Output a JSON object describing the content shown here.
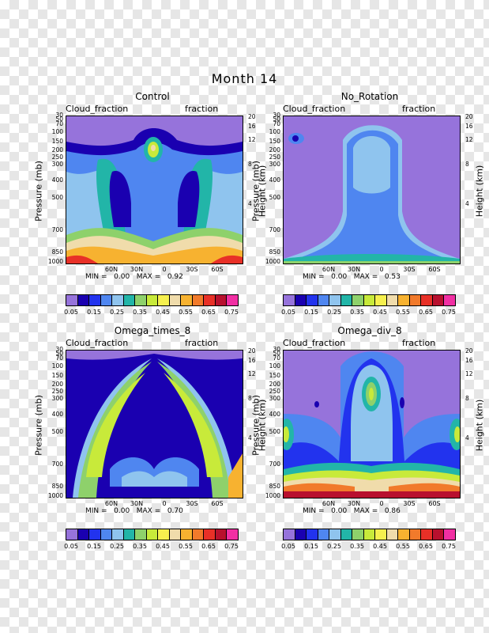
{
  "page_title": "Month 14",
  "colors": [
    "#9673db",
    "#1a00b0",
    "#2233ee",
    "#4f86f0",
    "#8fc4ee",
    "#22b5a8",
    "#8ed16b",
    "#c8ea3a",
    "#f6f04e",
    "#f0dcab",
    "#f7b230",
    "#f17a2b",
    "#e83027",
    "#b8102e",
    "#f12fa3"
  ],
  "colorbar_labels": [
    "0.05",
    "0.15",
    "0.25",
    "0.35",
    "0.45",
    "0.55",
    "0.65",
    "0.75"
  ],
  "left_axis_ticks": [
    "30",
    "50",
    "70",
    "100",
    "150",
    "200",
    "250",
    "300",
    "400",
    "500",
    "700",
    "850",
    "1000"
  ],
  "right_axis_ticks": [
    "20",
    "16",
    "12",
    "8",
    "4"
  ],
  "x_ticks": [
    "60N",
    "30N",
    "0",
    "30S",
    "60S"
  ],
  "left_axis_title": "Pressure (mb)",
  "right_axis_title": "Height (km)",
  "panels": [
    {
      "title": "Control",
      "left_caption": "Cloud_fraction",
      "right_caption": "fraction",
      "min_label": "MIN =",
      "min": "0.00",
      "max_label": "MAX =",
      "max": "0.92"
    },
    {
      "title": "No_Rotation",
      "left_caption": "Cloud_fraction",
      "right_caption": "fraction",
      "min_label": "MIN =",
      "min": "0.00",
      "max_label": "MAX =",
      "max": "0.53"
    },
    {
      "title": "Omega_times_8",
      "left_caption": "Cloud_fraction",
      "right_caption": "fraction",
      "min_label": "MIN =",
      "min": "0.00",
      "max_label": "MAX =",
      "max": "0.70"
    },
    {
      "title": "Omega_div_8",
      "left_caption": "Cloud_fraction",
      "right_caption": "fraction",
      "min_label": "MIN =",
      "min": "0.00",
      "max_label": "MAX =",
      "max": "0.86"
    }
  ],
  "chart_data": [
    {
      "type": "heatmap",
      "title": "Control",
      "xlabel": "",
      "ylabel": "Pressure (mb)",
      "y2label": "Height (km)",
      "xlim": [
        "90N",
        "90S"
      ],
      "ylim": [
        1000,
        30
      ],
      "y_scale": "log",
      "min": 0.0,
      "max": 0.92,
      "levels": [
        0.05,
        0.1,
        0.15,
        0.2,
        0.25,
        0.3,
        0.35,
        0.4,
        0.45,
        0.5,
        0.55,
        0.6,
        0.65,
        0.7,
        0.75
      ]
    },
    {
      "type": "heatmap",
      "title": "No_Rotation",
      "xlabel": "",
      "ylabel": "Pressure (mb)",
      "y2label": "Height (km)",
      "xlim": [
        "90N",
        "90S"
      ],
      "ylim": [
        1000,
        30
      ],
      "y_scale": "log",
      "min": 0.0,
      "max": 0.53,
      "levels": [
        0.05,
        0.1,
        0.15,
        0.2,
        0.25,
        0.3,
        0.35,
        0.4,
        0.45,
        0.5,
        0.55,
        0.6,
        0.65,
        0.7,
        0.75
      ]
    },
    {
      "type": "heatmap",
      "title": "Omega_times_8",
      "xlabel": "",
      "ylabel": "Pressure (mb)",
      "y2label": "Height (km)",
      "xlim": [
        "90N",
        "90S"
      ],
      "ylim": [
        1000,
        30
      ],
      "y_scale": "log",
      "min": 0.0,
      "max": 0.7,
      "levels": [
        0.05,
        0.1,
        0.15,
        0.2,
        0.25,
        0.3,
        0.35,
        0.4,
        0.45,
        0.5,
        0.55,
        0.6,
        0.65,
        0.7,
        0.75
      ]
    },
    {
      "type": "heatmap",
      "title": "Omega_div_8",
      "xlabel": "",
      "ylabel": "Pressure (mb)",
      "y2label": "Height (km)",
      "xlim": [
        "90N",
        "90S"
      ],
      "ylim": [
        1000,
        30
      ],
      "y_scale": "log",
      "min": 0.0,
      "max": 0.86,
      "levels": [
        0.05,
        0.1,
        0.15,
        0.2,
        0.25,
        0.3,
        0.35,
        0.4,
        0.45,
        0.5,
        0.55,
        0.6,
        0.65,
        0.7,
        0.75
      ]
    }
  ]
}
